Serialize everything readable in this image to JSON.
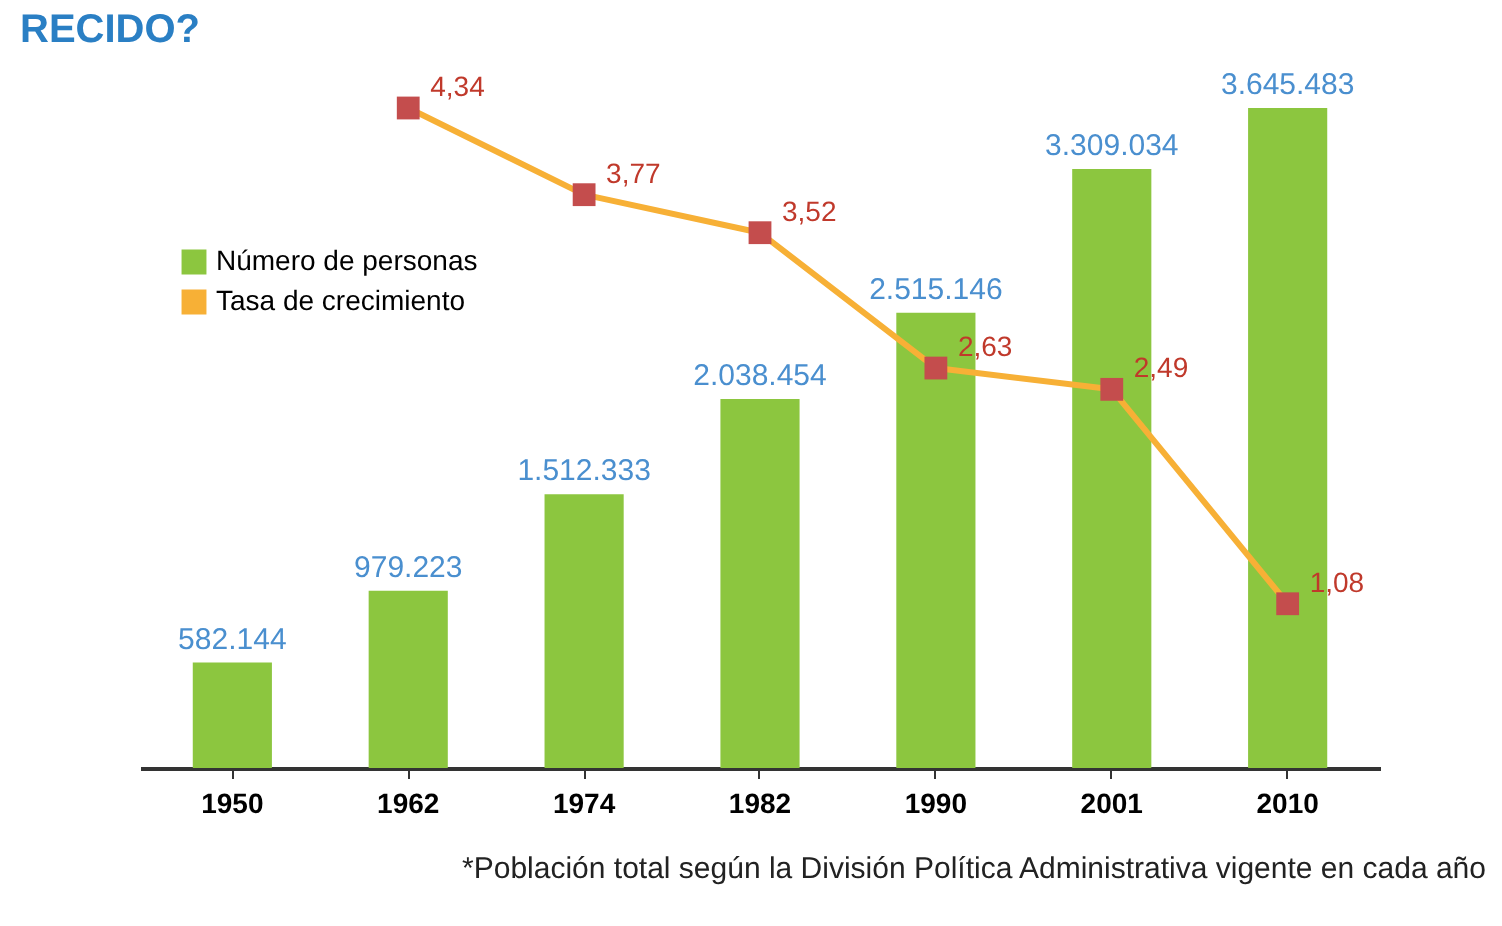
{
  "chart_data": {
    "type": "bar",
    "title": "RECIDO?",
    "categories": [
      "1950",
      "1962",
      "1974",
      "1982",
      "1990",
      "2001",
      "2010"
    ],
    "series": [
      {
        "name": "Número de personas",
        "color": "#8cc63f",
        "values": [
          582144,
          979223,
          1512333,
          2038454,
          2515146,
          3309034,
          3645483
        ],
        "value_labels": [
          "582.144",
          "979.223",
          "1.512.333",
          "2.038.454",
          "2.515.146",
          "3.309.034",
          "3.645.483"
        ]
      },
      {
        "name": "Tasa de crecimiento",
        "type": "line",
        "axis": "y2",
        "color": "#f7b036",
        "marker": "square",
        "values": [
          null,
          4.34,
          3.77,
          3.52,
          2.63,
          2.49,
          1.08
        ],
        "value_labels": [
          null,
          "4,34",
          "3,77",
          "3,52",
          "2,63",
          "2,49",
          "1,08"
        ]
      }
    ],
    "legend": "top left",
    "grid": false,
    "annotations": [
      "*Población total según la División Política Administrativa vigente en cada año"
    ]
  }
}
